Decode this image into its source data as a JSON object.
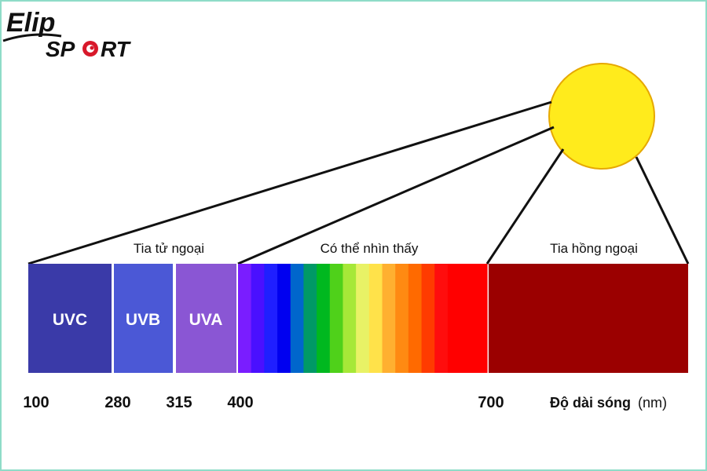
{
  "brand": {
    "logo_text_top": "ELIP",
    "logo_text_bottom": "SPORT",
    "accent": "#d8182a"
  },
  "bands": {
    "uv": "Tia tử ngoại",
    "visible": "Có thể nhìn thấy",
    "ir": "Tia hồng ngoại"
  },
  "segments": {
    "uvc": {
      "label": "UVC",
      "color": "#3a3aa8"
    },
    "uvb": {
      "label": "UVB",
      "color": "#4b58d6"
    },
    "uva": {
      "label": "UVA",
      "color": "#8a56d4"
    },
    "ir": {
      "label": "",
      "color": "#9b0000"
    }
  },
  "ticks": [
    "100",
    "280",
    "315",
    "400",
    "700"
  ],
  "axis": {
    "title_bold": "Độ dài sóng",
    "unit": "(nm)"
  },
  "sun": {
    "color": "#ffeb1c",
    "stroke": "#e6a800"
  },
  "spectrum_colors": [
    "#7a1dff",
    "#4a10ff",
    "#1f1fff",
    "#0000f0",
    "#0066cc",
    "#009966",
    "#00b81f",
    "#4fd11a",
    "#a6e838",
    "#e8f266",
    "#ffe24a",
    "#ffb030",
    "#ff8a12",
    "#ff6a00",
    "#ff3b00",
    "#ff0d0d",
    "#ff0000"
  ]
}
